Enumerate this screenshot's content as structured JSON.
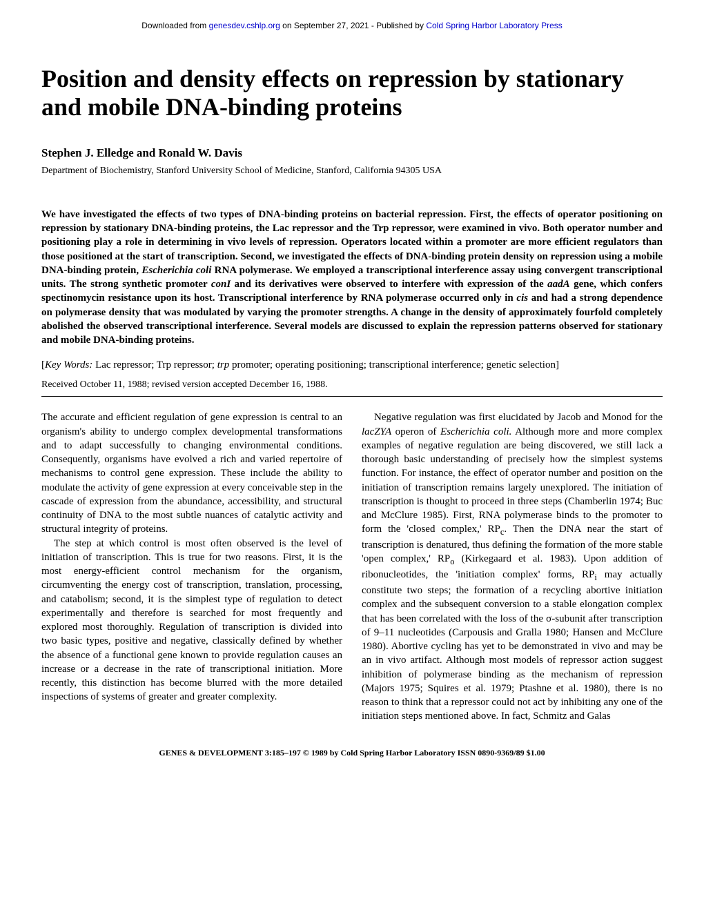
{
  "header": {
    "prefix": "Downloaded from ",
    "link1_text": "genesdev.cshlp.org",
    "middle": " on September 27, 2021 - Published by ",
    "link2_text": "Cold Spring Harbor Laboratory Press"
  },
  "title": "Position and density effects on repression by stationary and mobile DNA-binding proteins",
  "authors": "Stephen J. Elledge and Ronald W. Davis",
  "affiliation": "Department of Biochemistry, Stanford University School of Medicine, Stanford, California 94305 USA",
  "abstract": {
    "p1_a": "We have investigated the effects of two types of DNA-binding proteins on bacterial repression. First, the effects of operator positioning on repression by stationary DNA-binding proteins, the Lac repressor and the Trp repressor, were examined in vivo. Both operator number and positioning play a role in determining in vivo levels of repression. Operators located within a promoter are more efficient regulators than those positioned at the start of transcription. Second, we investigated the effects of DNA-binding protein density on repression using a mobile DNA-binding protein, ",
    "p1_i1": "Escherichia coli",
    "p1_b": " RNA polymerase. We employed a transcriptional interference assay using convergent transcriptional units. The strong synthetic promoter ",
    "p1_i2": "conI",
    "p1_c": " and its derivatives were observed to interfere with expression of the ",
    "p1_i3": "aadA",
    "p1_d": " gene, which confers spectinomycin resistance upon its host. Transcriptional interference by RNA polymerase occurred only in ",
    "p1_i4": "cis",
    "p1_e": " and had a strong dependence on polymerase density that was modulated by varying the promoter strengths. A change in the density of approximately fourfold completely abolished the observed transcriptional interference. Several models are discussed to explain the repression patterns observed for stationary and mobile DNA-binding proteins."
  },
  "keywords": {
    "label_a": "[",
    "label_i": "Key Words:",
    "text_a": " Lac repressor; Trp repressor; ",
    "text_i1": "trp",
    "text_b": " promoter; operating positioning; transcriptional interference; genetic selection]"
  },
  "received": "Received October 11, 1988; revised version accepted December 16, 1988.",
  "body": {
    "p1": "The accurate and efficient regulation of gene expression is central to an organism's ability to undergo complex developmental transformations and to adapt successfully to changing environmental conditions. Consequently, organisms have evolved a rich and varied repertoire of mechanisms to control gene expression. These include the ability to modulate the activity of gene expression at every conceivable step in the cascade of expression from the abundance, accessibility, and structural continuity of DNA to the most subtle nuances of catalytic activity and structural integrity of proteins.",
    "p2": "The step at which control is most often observed is the level of initiation of transcription. This is true for two reasons. First, it is the most energy-efficient control mechanism for the organism, circumventing the energy cost of transcription, translation, processing, and catabolism; second, it is the simplest type of regulation to detect experimentally and therefore is searched for most frequently and explored most thoroughly. Regulation of transcription is divided into two basic types, positive and negative, classically defined by whether the absence of a functional gene known to provide regulation causes an increase or a decrease in the rate of transcriptional initiation. More recently, this distinction has become blurred with the more detailed inspections of systems of greater and greater complexity.",
    "p3_a": "Negative regulation was first elucidated by Jacob and Monod for the ",
    "p3_i1": "lacZYA",
    "p3_b": " operon of ",
    "p3_i2": "Escherichia coli.",
    "p3_c": " Although more and more complex examples of negative regulation are being discovered, we still lack a thorough basic understanding of precisely how the simplest systems function. For instance, the effect of operator number and position on the initiation of transcription remains largely unexplored. The initiation of transcription is thought to proceed in three steps (Chamberlin 1974; Buc and McClure 1985). First, RNA polymerase binds to the promoter to form the 'closed complex,' RP",
    "p3_sub1": "c",
    "p3_d": ". Then the DNA near the start of transcription is denatured, thus defining the formation of the more stable 'open complex,' RP",
    "p3_sub2": "o",
    "p3_e": " (Kirkegaard et al. 1983). Upon addition of ribonucleotides, the 'initiation complex' forms, RP",
    "p3_sub3": "i",
    "p3_f": " may actually constitute two steps; the formation of a recycling abortive initiation complex and the subsequent conversion to a stable elongation complex that has been correlated with the loss of the σ-subunit after transcription of 9–11 nucleotides (Carpousis and Gralla 1980; Hansen and McClure 1980). Abortive cycling has yet to be demonstrated in vivo and may be an in vivo artifact. Although most models of repressor action suggest inhibition of polymerase binding as the mechanism of repression (Majors 1975; Squires et al. 1979; Ptashne et al. 1980), there is no reason to think that a repressor could not act by inhibiting any one of the initiation steps mentioned above. In fact, Schmitz and Galas"
  },
  "footer": "GENES & DEVELOPMENT 3:185–197 © 1989 by Cold Spring Harbor Laboratory ISSN 0890-9369/89 $1.00",
  "colors": {
    "link": "#0000cc",
    "text": "#000000",
    "background": "#ffffff"
  }
}
